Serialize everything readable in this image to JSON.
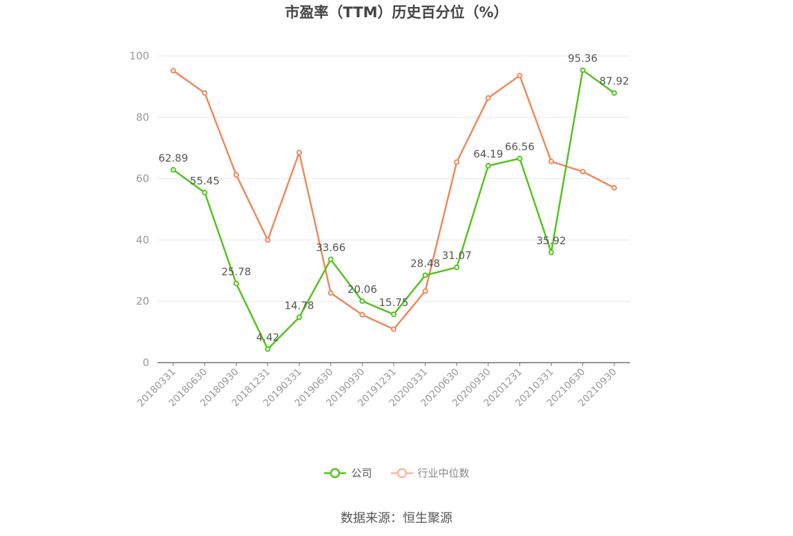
{
  "chart_data": {
    "type": "line",
    "title": "市盈率（TTM）历史百分位（%）",
    "categories": [
      "20180331",
      "20180630",
      "20180930",
      "20181231",
      "20190331",
      "20190630",
      "20190930",
      "20191231",
      "20200331",
      "20200630",
      "20200930",
      "20201231",
      "20210331",
      "20210630",
      "20210930"
    ],
    "series": [
      {
        "name": "公司",
        "color": "#52c41a",
        "values": [
          62.89,
          55.45,
          25.78,
          4.42,
          14.78,
          33.66,
          20.06,
          15.75,
          28.48,
          31.07,
          64.19,
          66.56,
          35.92,
          95.36,
          87.92
        ],
        "labels_shown": true
      },
      {
        "name": "行业中位数",
        "color": "#f0875a",
        "values": [
          95.2,
          87.9,
          61.2,
          40.0,
          68.5,
          22.7,
          15.6,
          10.9,
          23.3,
          65.4,
          86.3,
          93.6,
          65.6,
          62.3,
          57.0
        ],
        "labels_shown": false
      }
    ],
    "ylim": [
      0,
      100
    ],
    "yticks": [
      0,
      20,
      40,
      60,
      80,
      100
    ],
    "grid": true,
    "legend_position": "bottom-center"
  },
  "footer": {
    "source": "数据来源：恒生聚源"
  }
}
